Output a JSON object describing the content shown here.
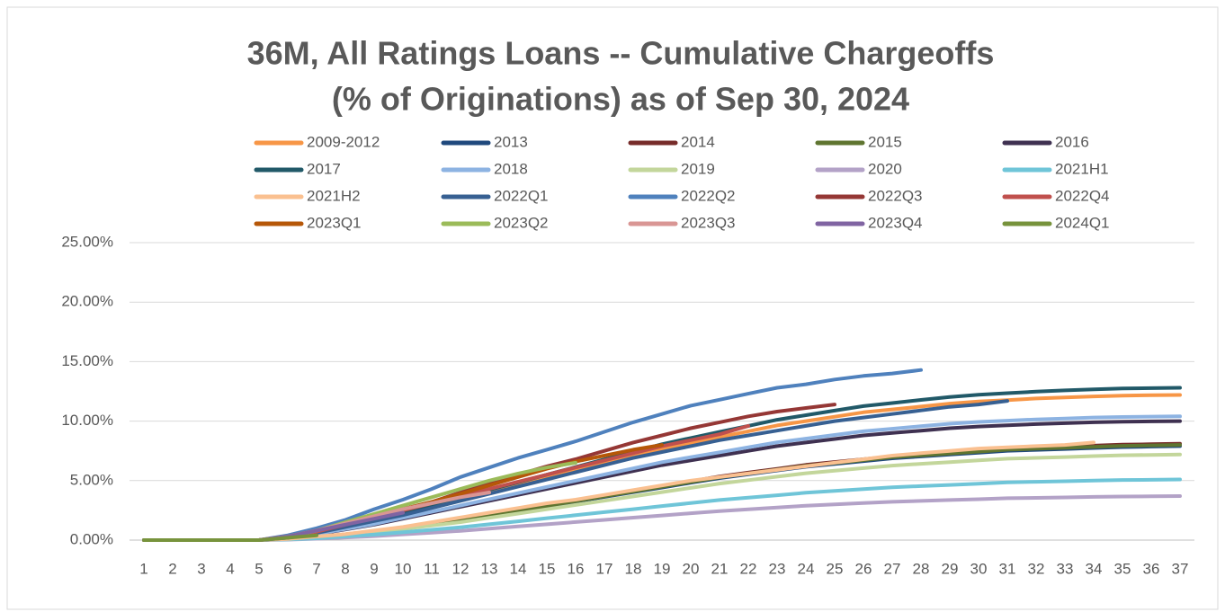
{
  "chart_data": {
    "type": "line",
    "title": "36M, All Ratings Loans -- Cumulative Chargeoffs",
    "subtitle": "(% of Originations) as of Sep 30, 2024",
    "categories": [
      "1",
      "2",
      "3",
      "4",
      "5",
      "6",
      "7",
      "8",
      "9",
      "10",
      "11",
      "12",
      "13",
      "14",
      "15",
      "16",
      "17",
      "18",
      "19",
      "20",
      "21",
      "22",
      "23",
      "24",
      "25",
      "26",
      "27",
      "28",
      "29",
      "30",
      "31",
      "32",
      "33",
      "34",
      "35",
      "36",
      "37"
    ],
    "ylim": [
      0,
      25
    ],
    "yticks": [
      {
        "value": 0,
        "label": "0.00%"
      },
      {
        "value": 5,
        "label": "5.00%"
      },
      {
        "value": 10,
        "label": "10.00%"
      },
      {
        "value": 15,
        "label": "15.00%"
      },
      {
        "value": 20,
        "label": "20.00%"
      },
      {
        "value": 25,
        "label": "25.00%"
      }
    ],
    "grid": true,
    "legend": "top",
    "series": [
      {
        "name": "2009-2012",
        "color": "#f79646",
        "values": [
          0,
          0,
          0,
          0,
          0,
          0.24,
          0.61,
          1.1,
          1.59,
          2.2,
          2.81,
          3.42,
          4.03,
          4.64,
          5.25,
          5.86,
          6.47,
          7.08,
          7.69,
          8.17,
          8.66,
          9.15,
          9.64,
          10.0,
          10.37,
          10.74,
          10.98,
          11.22,
          11.47,
          11.65,
          11.77,
          11.9,
          11.99,
          12.08,
          12.14,
          12.18,
          12.2
        ]
      },
      {
        "name": "2013",
        "color": "#1f497d",
        "values": [
          0,
          0,
          0,
          0,
          0,
          0.08,
          0.24,
          0.47,
          0.71,
          1.03,
          1.34,
          1.66,
          2.05,
          2.45,
          2.84,
          3.24,
          3.63,
          4.03,
          4.42,
          4.82,
          5.21,
          5.53,
          5.85,
          6.16,
          6.4,
          6.64,
          6.87,
          7.03,
          7.19,
          7.35,
          7.51,
          7.58,
          7.66,
          7.74,
          7.82,
          7.86,
          7.9
        ]
      },
      {
        "name": "2014",
        "color": "#772c2a",
        "values": [
          0,
          0,
          0,
          0,
          0,
          0.08,
          0.24,
          0.49,
          0.73,
          1.05,
          1.38,
          1.7,
          2.11,
          2.51,
          2.92,
          3.32,
          3.73,
          4.13,
          4.54,
          4.94,
          5.35,
          5.67,
          5.99,
          6.32,
          6.56,
          6.8,
          7.05,
          7.21,
          7.37,
          7.53,
          7.7,
          7.78,
          7.86,
          7.94,
          8.02,
          8.06,
          8.1
        ]
      },
      {
        "name": "2015",
        "color": "#5f7530",
        "values": [
          0,
          0,
          0,
          0,
          0,
          0.08,
          0.24,
          0.48,
          0.72,
          1.04,
          1.36,
          1.68,
          2.08,
          2.48,
          2.88,
          3.28,
          3.68,
          4.08,
          4.48,
          4.88,
          5.28,
          5.6,
          5.92,
          6.24,
          6.48,
          6.72,
          6.96,
          7.12,
          7.28,
          7.44,
          7.6,
          7.68,
          7.76,
          7.84,
          7.92,
          7.96,
          8.0
        ]
      },
      {
        "name": "2016",
        "color": "#3f3151",
        "values": [
          0,
          0,
          0,
          0,
          0,
          0.2,
          0.5,
          0.9,
          1.3,
          1.8,
          2.3,
          2.8,
          3.3,
          3.8,
          4.3,
          4.8,
          5.3,
          5.8,
          6.3,
          6.7,
          7.1,
          7.5,
          7.9,
          8.2,
          8.5,
          8.8,
          9.0,
          9.2,
          9.4,
          9.55,
          9.65,
          9.75,
          9.83,
          9.9,
          9.95,
          9.98,
          10.0
        ]
      },
      {
        "name": "2017",
        "color": "#215968",
        "values": [
          0,
          0,
          0,
          0,
          0,
          0.26,
          0.64,
          1.15,
          1.66,
          2.3,
          2.94,
          3.58,
          4.22,
          4.86,
          5.5,
          6.14,
          6.78,
          7.42,
          8.06,
          8.58,
          9.09,
          9.6,
          10.11,
          10.5,
          10.88,
          11.26,
          11.52,
          11.78,
          12.03,
          12.22,
          12.35,
          12.48,
          12.58,
          12.67,
          12.74,
          12.77,
          12.8
        ]
      },
      {
        "name": "2018",
        "color": "#8db3e2",
        "values": [
          0,
          0,
          0,
          0,
          0,
          0.21,
          0.52,
          0.94,
          1.35,
          1.87,
          2.39,
          2.91,
          3.43,
          3.95,
          4.47,
          4.99,
          5.51,
          6.03,
          6.55,
          6.97,
          7.38,
          7.8,
          8.22,
          8.53,
          8.84,
          9.15,
          9.36,
          9.57,
          9.78,
          9.93,
          10.04,
          10.14,
          10.22,
          10.3,
          10.35,
          10.38,
          10.4
        ]
      },
      {
        "name": "2019",
        "color": "#c3d69b",
        "values": [
          0,
          0,
          0,
          0,
          0,
          0.07,
          0.22,
          0.43,
          0.65,
          0.94,
          1.22,
          1.51,
          1.87,
          2.23,
          2.59,
          2.95,
          3.31,
          3.67,
          4.03,
          4.39,
          4.75,
          5.04,
          5.33,
          5.62,
          5.83,
          6.05,
          6.26,
          6.41,
          6.55,
          6.7,
          6.84,
          6.91,
          6.98,
          7.06,
          7.13,
          7.16,
          7.2
        ]
      },
      {
        "name": "2020",
        "color": "#b3a2c7",
        "values": [
          0,
          0,
          0,
          0,
          0,
          0.04,
          0.11,
          0.22,
          0.33,
          0.48,
          0.63,
          0.78,
          0.96,
          1.15,
          1.33,
          1.52,
          1.7,
          1.89,
          2.07,
          2.26,
          2.44,
          2.59,
          2.74,
          2.89,
          3.0,
          3.11,
          3.22,
          3.29,
          3.37,
          3.44,
          3.52,
          3.55,
          3.59,
          3.63,
          3.66,
          3.68,
          3.7
        ]
      },
      {
        "name": "2021H1",
        "color": "#6fc5d8",
        "values": [
          0,
          0,
          0,
          0,
          0,
          0.05,
          0.15,
          0.31,
          0.46,
          0.66,
          0.87,
          1.07,
          1.33,
          1.58,
          1.84,
          2.09,
          2.35,
          2.6,
          2.86,
          3.11,
          3.37,
          3.57,
          3.77,
          3.98,
          4.13,
          4.28,
          4.44,
          4.54,
          4.64,
          4.74,
          4.85,
          4.9,
          4.95,
          5.0,
          5.05,
          5.07,
          5.1
        ]
      },
      {
        "name": "2021H2",
        "color": "#fac090",
        "values": [
          0,
          0,
          0,
          0,
          0,
          0.1,
          0.3,
          0.5,
          0.8,
          1.1,
          1.5,
          1.9,
          2.3,
          2.7,
          3.1,
          3.4,
          3.8,
          4.2,
          4.6,
          5.0,
          5.3,
          5.6,
          5.9,
          6.2,
          6.5,
          6.8,
          7.1,
          7.3,
          7.5,
          7.7,
          7.8,
          7.9,
          8.0,
          8.2,
          null,
          null,
          null
        ]
      },
      {
        "name": "2022Q1",
        "color": "#376092",
        "values": [
          0,
          0,
          0,
          0,
          0,
          0.2,
          0.6,
          1.1,
          1.6,
          2.1,
          2.7,
          3.3,
          3.9,
          4.5,
          5.1,
          5.7,
          6.3,
          6.9,
          7.4,
          7.9,
          8.4,
          8.8,
          9.2,
          9.6,
          10.0,
          10.3,
          10.6,
          10.9,
          11.2,
          11.4,
          11.7,
          null,
          null,
          null,
          null,
          null,
          null
        ]
      },
      {
        "name": "2022Q2",
        "color": "#4f81bd",
        "values": [
          0,
          0,
          0,
          0,
          0,
          0.4,
          1.0,
          1.7,
          2.6,
          3.4,
          4.3,
          5.3,
          6.1,
          6.9,
          7.6,
          8.3,
          9.1,
          9.9,
          10.6,
          11.3,
          11.8,
          12.3,
          12.8,
          13.1,
          13.5,
          13.8,
          14.0,
          14.3,
          null,
          null,
          null,
          null,
          null,
          null,
          null,
          null,
          null
        ]
      },
      {
        "name": "2022Q3",
        "color": "#953735",
        "values": [
          0,
          0,
          0,
          0,
          0,
          0.3,
          0.8,
          1.4,
          2.0,
          2.6,
          3.2,
          4.0,
          4.8,
          5.5,
          6.2,
          6.8,
          7.5,
          8.2,
          8.8,
          9.4,
          9.9,
          10.4,
          10.8,
          11.1,
          11.4,
          null,
          null,
          null,
          null,
          null,
          null,
          null,
          null,
          null,
          null,
          null,
          null
        ]
      },
      {
        "name": "2022Q4",
        "color": "#c0504d",
        "values": [
          0,
          0,
          0,
          0,
          0,
          0.3,
          0.7,
          1.3,
          1.9,
          2.5,
          3.1,
          3.7,
          4.3,
          4.9,
          5.5,
          6.1,
          6.7,
          7.3,
          7.9,
          8.4,
          8.9,
          9.6,
          null,
          null,
          null,
          null,
          null,
          null,
          null,
          null,
          null,
          null,
          null,
          null,
          null,
          null,
          null
        ]
      },
      {
        "name": "2023Q1",
        "color": "#b65708",
        "values": [
          0,
          0,
          0,
          0,
          0,
          0.3,
          0.8,
          1.4,
          2.0,
          2.6,
          3.2,
          3.9,
          4.6,
          5.3,
          6.0,
          6.6,
          7.1,
          7.6,
          8.0,
          null,
          null,
          null,
          null,
          null,
          null,
          null,
          null,
          null,
          null,
          null,
          null,
          null,
          null,
          null,
          null,
          null,
          null
        ]
      },
      {
        "name": "2023Q2",
        "color": "#9bbb59",
        "values": [
          0,
          0,
          0,
          0,
          0,
          0.3,
          0.8,
          1.5,
          2.2,
          2.9,
          3.6,
          4.3,
          5.0,
          5.6,
          6.1,
          6.5,
          null,
          null,
          null,
          null,
          null,
          null,
          null,
          null,
          null,
          null,
          null,
          null,
          null,
          null,
          null,
          null,
          null,
          null,
          null,
          null,
          null
        ]
      },
      {
        "name": "2023Q3",
        "color": "#d99694",
        "values": [
          0,
          0,
          0,
          0,
          0,
          0.3,
          0.8,
          1.4,
          2.0,
          2.6,
          3.1,
          3.6,
          4.0,
          null,
          null,
          null,
          null,
          null,
          null,
          null,
          null,
          null,
          null,
          null,
          null,
          null,
          null,
          null,
          null,
          null,
          null,
          null,
          null,
          null,
          null,
          null,
          null
        ]
      },
      {
        "name": "2023Q4",
        "color": "#8064a2",
        "values": [
          0,
          0,
          0,
          0,
          0,
          0.3,
          0.8,
          1.3,
          1.8,
          2.3,
          null,
          null,
          null,
          null,
          null,
          null,
          null,
          null,
          null,
          null,
          null,
          null,
          null,
          null,
          null,
          null,
          null,
          null,
          null,
          null,
          null,
          null,
          null,
          null,
          null,
          null,
          null
        ]
      },
      {
        "name": "2024Q1",
        "color": "#77933c",
        "values": [
          0,
          0,
          0,
          0,
          0,
          0.2,
          0.4,
          null,
          null,
          null,
          null,
          null,
          null,
          null,
          null,
          null,
          null,
          null,
          null,
          null,
          null,
          null,
          null,
          null,
          null,
          null,
          null,
          null,
          null,
          null,
          null,
          null,
          null,
          null,
          null,
          null,
          null
        ]
      }
    ]
  }
}
